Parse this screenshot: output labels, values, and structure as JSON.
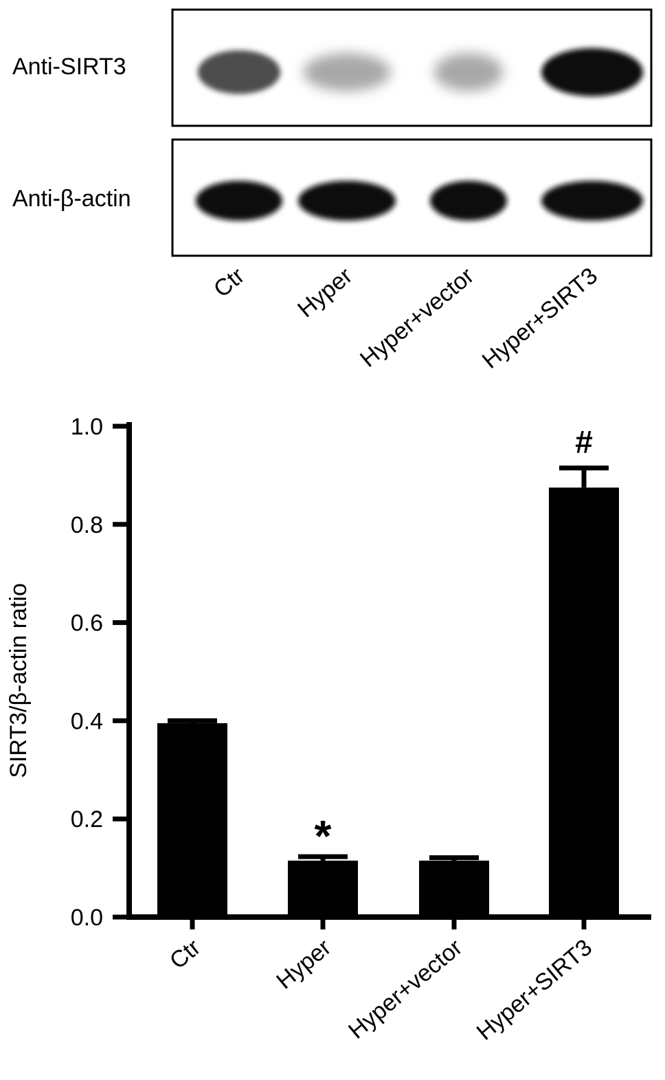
{
  "blot": {
    "lanes": [
      "Ctr",
      "Hyper",
      "Hyper+vector",
      "Hyper+SIRT3"
    ],
    "rows": [
      {
        "label": "Anti-SIRT3",
        "intensity": [
          0.7,
          0.3,
          0.3,
          1.0
        ]
      },
      {
        "label": "Anti-β-actin",
        "intensity": [
          1.0,
          1.0,
          1.0,
          1.0
        ]
      }
    ]
  },
  "chart_data": {
    "type": "bar",
    "categories": [
      "Ctr",
      "Hyper",
      "Hyper+vector",
      "Hyper+SIRT3"
    ],
    "values": [
      0.395,
      0.115,
      0.115,
      0.875
    ],
    "errors": [
      0.005,
      0.008,
      0.006,
      0.04
    ],
    "annotations": [
      "",
      "*",
      "",
      "#"
    ],
    "ylabel": "SIRT3/β-actin ratio",
    "xlabel": "",
    "ylim": [
      0,
      1.0
    ],
    "yticks": [
      "0.0",
      "0.2",
      "0.4",
      "0.6",
      "0.8",
      "1.0"
    ],
    "grid": false,
    "color": "#000000"
  }
}
